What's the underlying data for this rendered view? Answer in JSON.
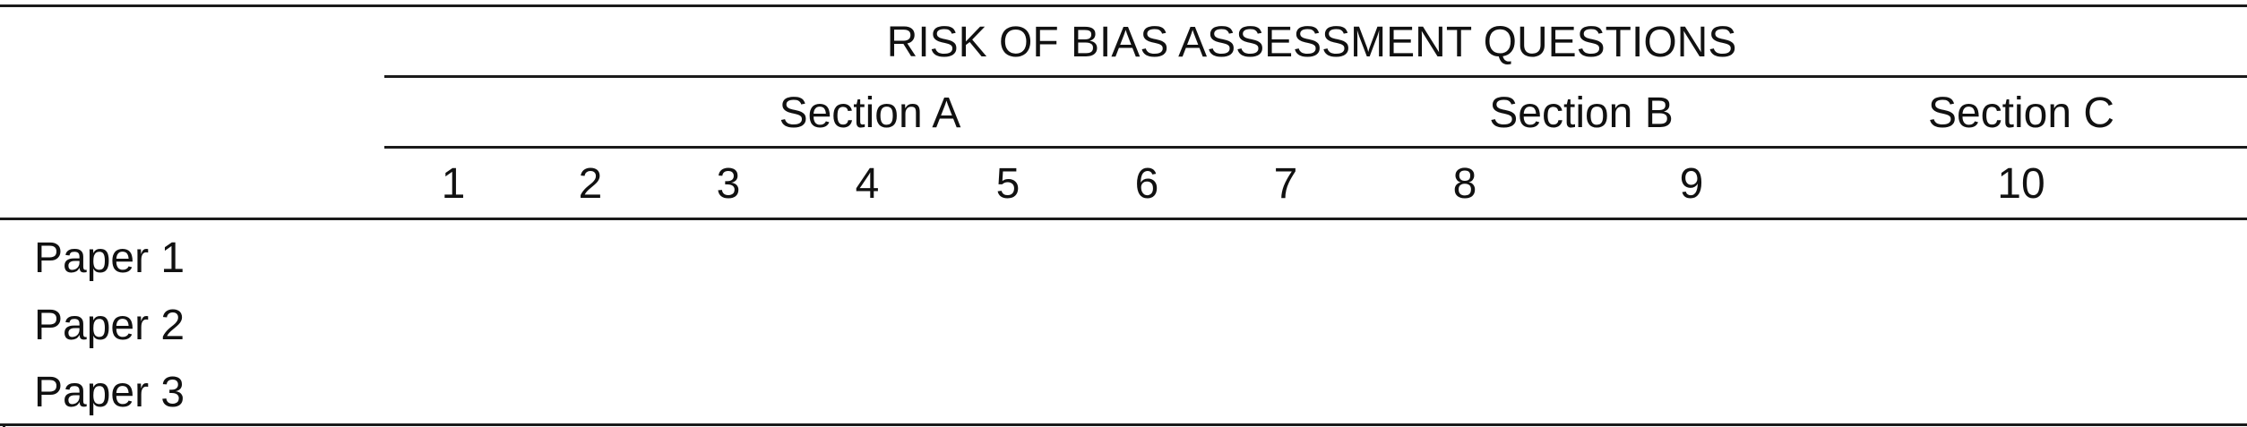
{
  "table": {
    "title": "RISK OF BIAS ASSESSMENT QUESTIONS",
    "sections": [
      "Section A",
      "Section B",
      "Section C"
    ],
    "questions": [
      "1",
      "2",
      "3",
      "4",
      "5",
      "6",
      "7",
      "8",
      "9",
      "10"
    ],
    "rows": [
      "Paper 1",
      "Paper 2",
      "Paper 3"
    ]
  }
}
